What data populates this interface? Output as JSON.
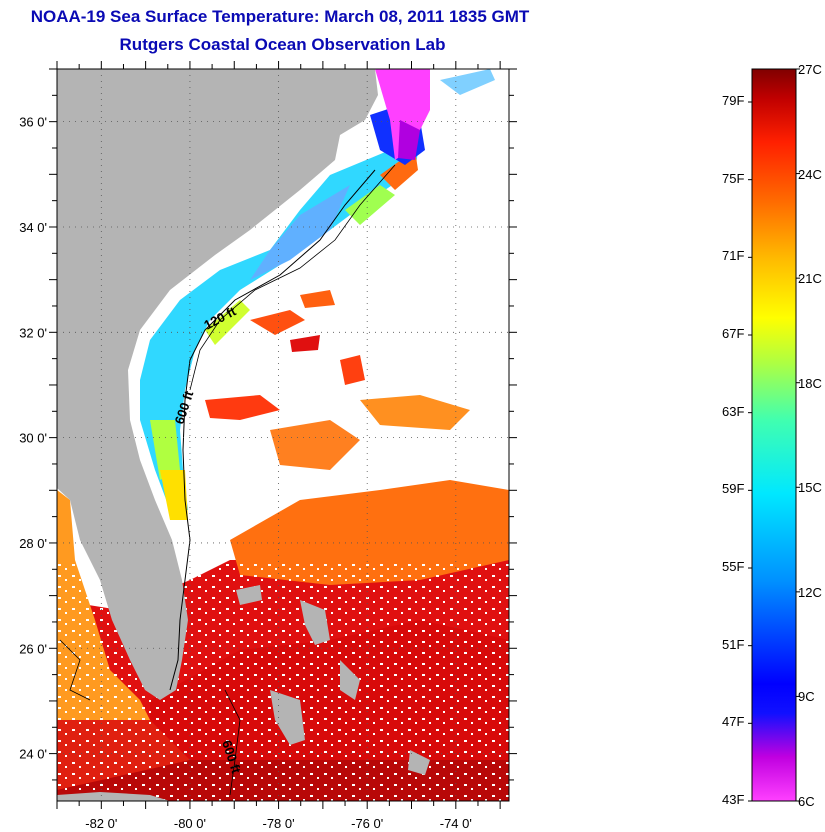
{
  "title": {
    "line1": "NOAA-19 Sea Surface Temperature:  March 08, 2011 1835 GMT",
    "line2": "Rutgers Coastal Ocean Observation Lab"
  },
  "map": {
    "lat_labels": [
      {
        "value": 36,
        "text": "36 0'"
      },
      {
        "value": 34,
        "text": "34 0'"
      },
      {
        "value": 32,
        "text": "32 0'"
      },
      {
        "value": 30,
        "text": "30 0'"
      },
      {
        "value": 28,
        "text": "28 0'"
      },
      {
        "value": 26,
        "text": "26 0'"
      },
      {
        "value": 24,
        "text": "24 0'"
      }
    ],
    "lon_labels": [
      {
        "value": -82,
        "text": "-82 0'"
      },
      {
        "value": -80,
        "text": "-80 0'"
      },
      {
        "value": -78,
        "text": "-78 0'"
      },
      {
        "value": -76,
        "text": "-76 0'"
      },
      {
        "value": -74,
        "text": "-74 0'"
      }
    ],
    "extent": {
      "lon": [
        -83.0,
        -72.8
      ],
      "lat": [
        23.1,
        37.0
      ]
    },
    "isobath_labels": [
      "120 ft",
      "600 ft",
      "600 ft"
    ],
    "colors": {
      "land": "#b4b4b4",
      "ocean_cloud": "#ffffff"
    }
  },
  "colorbar": {
    "fahrenheit": [
      "79F",
      "75F",
      "71F",
      "67F",
      "63F",
      "59F",
      "55F",
      "51F",
      "47F",
      "43F"
    ],
    "celsius": [
      "27C",
      "24C",
      "21C",
      "18C",
      "15C",
      "12C",
      "9C",
      "6C"
    ],
    "range_c": [
      6,
      27
    ],
    "gradient": [
      "#ff40ff",
      "#c000e0",
      "#0000ff",
      "#0080ff",
      "#00e8ff",
      "#40ffb0",
      "#c0ff40",
      "#ffff00",
      "#ffc000",
      "#ff7000",
      "#ff2800",
      "#e00000",
      "#900000"
    ]
  }
}
